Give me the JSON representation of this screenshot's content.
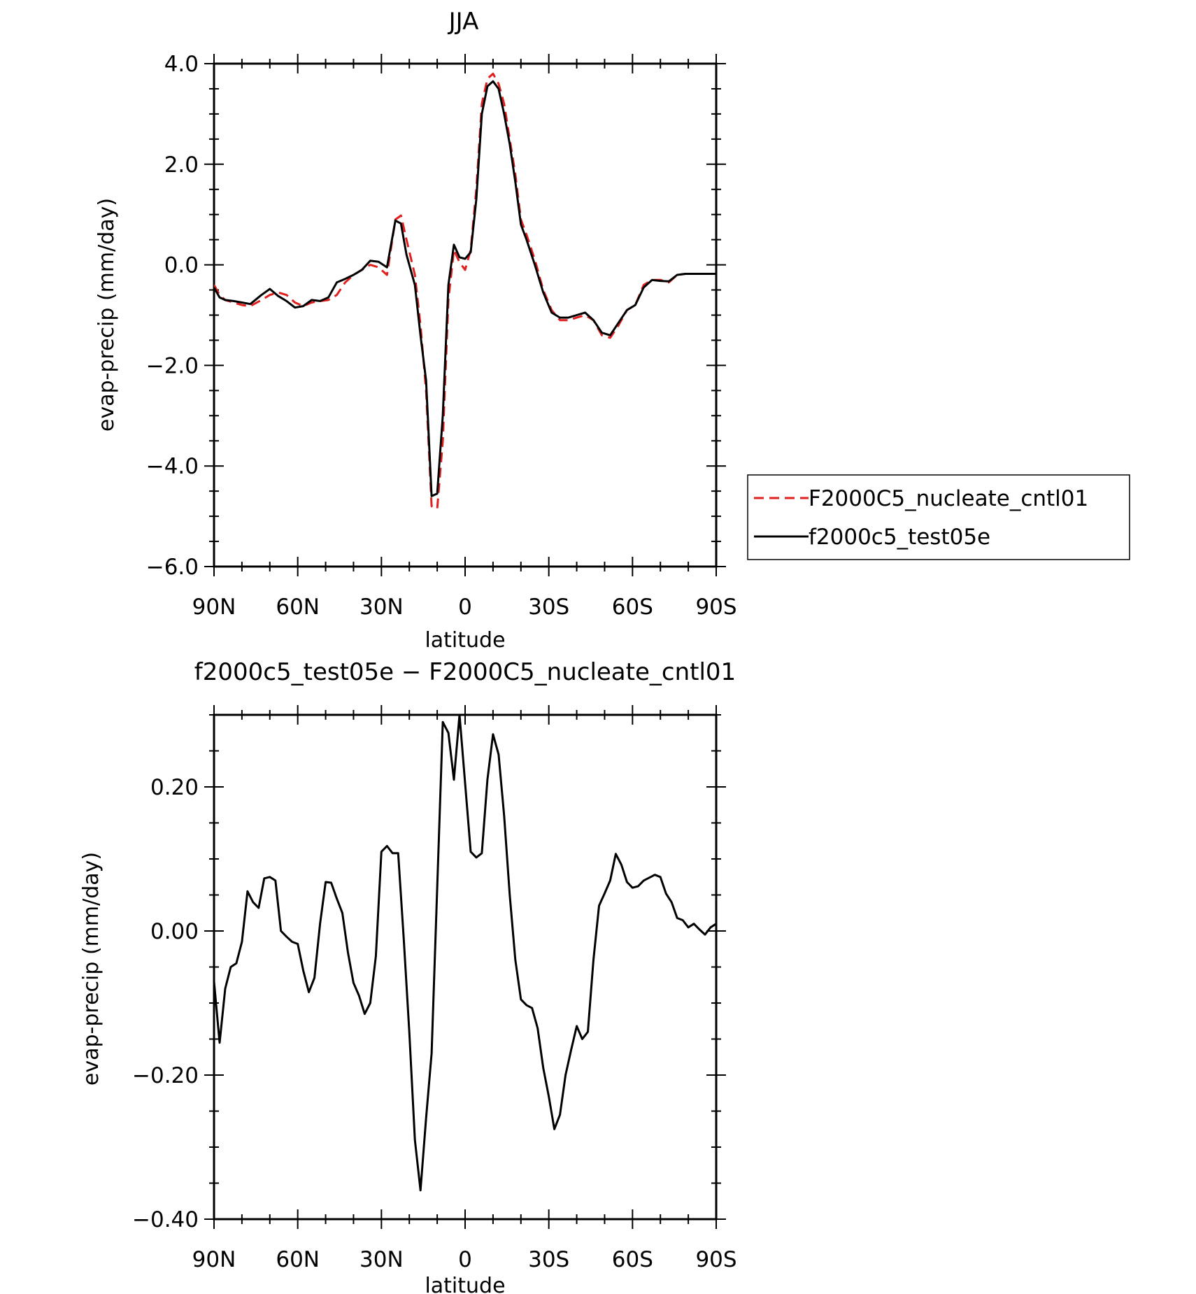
{
  "chart_data": [
    {
      "type": "line",
      "title": "JJA",
      "xlabel": "latitude",
      "ylabel": "evap-precip (mm/day)",
      "xlim": [
        90,
        -90
      ],
      "ylim": [
        -6,
        4
      ],
      "xticks": [
        90,
        60,
        30,
        0,
        -30,
        -60,
        -90
      ],
      "xtick_labels": [
        "90N",
        "60N",
        "30N",
        "0",
        "30S",
        "60S",
        "90S"
      ],
      "yticks": [
        4,
        2,
        0,
        -2,
        -4,
        -6
      ],
      "ytick_labels": [
        "4.0",
        "2.0",
        "0.0",
        "−2.0",
        "−4.0",
        "−6.0"
      ],
      "legend_position": "right, outside plot",
      "series": [
        {
          "name": "F2000C5_nucleate_cntl01",
          "color": "#e0201e",
          "dash": "dashed",
          "x": [
            90,
            88,
            86,
            83,
            80,
            77,
            73,
            70,
            67,
            64,
            61,
            58,
            55,
            52,
            49,
            46,
            43,
            40,
            37,
            34,
            31,
            28,
            25,
            23,
            21,
            18,
            16,
            14,
            12,
            10,
            8,
            6,
            4,
            2,
            0,
            -2,
            -4,
            -6,
            -8,
            -10,
            -12,
            -14,
            -16,
            -18,
            -20,
            -22,
            -25,
            -28,
            -31,
            -34,
            -37,
            -40,
            -43,
            -46,
            -49,
            -52,
            -55,
            -58,
            -61,
            -64,
            -67,
            -70,
            -73,
            -76,
            -79,
            -82,
            -85,
            -88,
            -90
          ],
          "y": [
            -0.4,
            -0.6,
            -0.7,
            -0.75,
            -0.8,
            -0.82,
            -0.7,
            -0.6,
            -0.55,
            -0.6,
            -0.75,
            -0.82,
            -0.75,
            -0.72,
            -0.7,
            -0.6,
            -0.35,
            -0.2,
            -0.1,
            0.0,
            -0.05,
            -0.2,
            0.9,
            0.98,
            0.5,
            -0.2,
            -1.2,
            -2.5,
            -4.8,
            -4.85,
            -3.5,
            -0.7,
            0.3,
            0.05,
            -0.1,
            0.3,
            1.5,
            3.2,
            3.7,
            3.8,
            3.6,
            3.2,
            2.5,
            1.8,
            0.9,
            0.6,
            0.1,
            -0.5,
            -0.9,
            -1.1,
            -1.1,
            -1.05,
            -1.0,
            -1.1,
            -1.4,
            -1.45,
            -1.2,
            -0.9,
            -0.8,
            -0.4,
            -0.3,
            -0.3,
            -0.35,
            -0.2,
            -0.18,
            -0.18,
            -0.18,
            -0.18,
            -0.18
          ]
        },
        {
          "name": "f2000c5_test05e",
          "color": "#000000",
          "dash": "solid",
          "x": [
            90,
            88,
            86,
            83,
            80,
            77,
            73,
            70,
            67,
            64,
            61,
            58,
            55,
            52,
            49,
            46,
            43,
            40,
            37,
            34,
            31,
            28,
            25,
            23,
            21,
            18,
            16,
            14,
            12,
            10,
            8,
            6,
            4,
            2,
            0,
            -2,
            -4,
            -6,
            -8,
            -10,
            -12,
            -14,
            -16,
            -18,
            -20,
            -22,
            -25,
            -28,
            -31,
            -34,
            -37,
            -40,
            -43,
            -46,
            -49,
            -52,
            -55,
            -58,
            -61,
            -64,
            -67,
            -70,
            -73,
            -76,
            -79,
            -82,
            -85,
            -88,
            -90
          ],
          "y": [
            -0.45,
            -0.65,
            -0.7,
            -0.72,
            -0.75,
            -0.78,
            -0.6,
            -0.48,
            -0.62,
            -0.72,
            -0.85,
            -0.82,
            -0.7,
            -0.72,
            -0.65,
            -0.35,
            -0.28,
            -0.2,
            -0.1,
            0.08,
            0.06,
            -0.05,
            0.88,
            0.82,
            0.2,
            -0.4,
            -1.4,
            -2.3,
            -4.6,
            -4.55,
            -3.0,
            -0.4,
            0.4,
            0.15,
            0.12,
            0.25,
            1.3,
            3.0,
            3.55,
            3.65,
            3.5,
            3.0,
            2.4,
            1.65,
            0.8,
            0.5,
            0.0,
            -0.55,
            -0.95,
            -1.05,
            -1.05,
            -1.0,
            -0.95,
            -1.1,
            -1.35,
            -1.4,
            -1.15,
            -0.9,
            -0.8,
            -0.45,
            -0.3,
            -0.32,
            -0.33,
            -0.2,
            -0.18,
            -0.18,
            -0.18,
            -0.18,
            -0.18
          ]
        }
      ]
    },
    {
      "type": "line",
      "title": "f2000c5_test05e − F2000C5_nucleate_cntl01",
      "xlabel": "latitude",
      "ylabel": "evap-precip (mm/day)",
      "xlim": [
        90,
        -90
      ],
      "ylim": [
        -0.4,
        0.3
      ],
      "xticks": [
        90,
        60,
        30,
        0,
        -30,
        -60,
        -90
      ],
      "xtick_labels": [
        "90N",
        "60N",
        "30N",
        "0",
        "30S",
        "60S",
        "90S"
      ],
      "yticks": [
        0.2,
        0.0,
        -0.2,
        -0.4
      ],
      "ytick_labels": [
        "0.20",
        "0.00",
        "−0.20",
        "−0.40"
      ],
      "series": [
        {
          "color": "#000000",
          "x": [
            90,
            88,
            86,
            84,
            82,
            80,
            78,
            76,
            74,
            72,
            70,
            68,
            66,
            64,
            62,
            60,
            58,
            56,
            54,
            52,
            50,
            48,
            46,
            44,
            42,
            40,
            38,
            36,
            34,
            32,
            30,
            28,
            26,
            24,
            22,
            20,
            18,
            16,
            14,
            12,
            10,
            8,
            6,
            4,
            2,
            0,
            -2,
            -4,
            -6,
            -8,
            -10,
            -12,
            -14,
            -16,
            -18,
            -20,
            -22,
            -24,
            -26,
            -28,
            -30,
            -32,
            -34,
            -36,
            -38,
            -40,
            -42,
            -44,
            -46,
            -48,
            -50,
            -52,
            -54,
            -56,
            -58,
            -60,
            -62,
            -64,
            -66,
            -68,
            -70,
            -72,
            -74,
            -76,
            -78,
            -80,
            -82,
            -84,
            -86,
            -88,
            -90
          ],
          "y": [
            -0.07,
            -0.155,
            -0.08,
            -0.05,
            -0.045,
            -0.015,
            0.055,
            0.04,
            0.032,
            0.073,
            0.075,
            0.07,
            0.0,
            -0.008,
            -0.015,
            -0.018,
            -0.055,
            -0.085,
            -0.065,
            0.01,
            0.068,
            0.067,
            0.045,
            0.025,
            -0.03,
            -0.072,
            -0.09,
            -0.115,
            -0.1,
            -0.035,
            0.11,
            0.118,
            0.108,
            0.108,
            -0.01,
            -0.14,
            -0.29,
            -0.36,
            -0.26,
            -0.17,
            0.06,
            0.29,
            0.275,
            0.21,
            0.3,
            0.205,
            0.11,
            0.102,
            0.108,
            0.21,
            0.273,
            0.245,
            0.16,
            0.05,
            -0.04,
            -0.095,
            -0.103,
            -0.107,
            -0.135,
            -0.19,
            -0.23,
            -0.275,
            -0.255,
            -0.2,
            -0.165,
            -0.132,
            -0.15,
            -0.14,
            -0.04,
            0.035,
            0.052,
            0.07,
            0.107,
            0.092,
            0.068,
            0.06,
            0.062,
            0.07,
            0.074,
            0.078,
            0.075,
            0.052,
            0.04,
            0.018,
            0.015,
            0.005,
            0.01,
            0.002,
            -0.005,
            0.005,
            0.01
          ]
        }
      ]
    }
  ]
}
